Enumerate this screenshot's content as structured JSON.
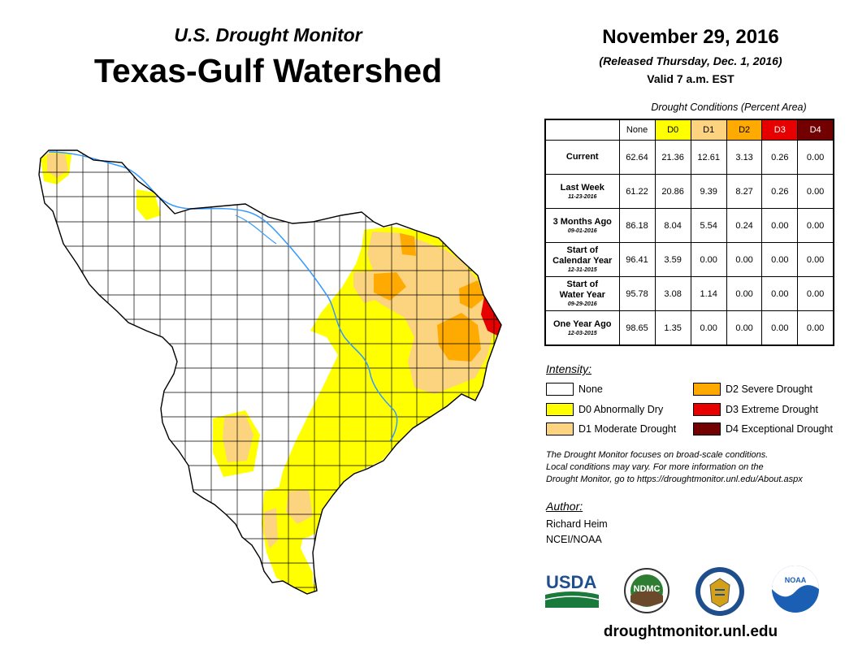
{
  "header": {
    "subtitle": "U.S. Drought Monitor",
    "title": "Texas-Gulf Watershed",
    "date": "November 29, 2016",
    "released": "(Released Thursday, Dec. 1, 2016)",
    "valid": "Valid 7 a.m. EST"
  },
  "table": {
    "caption": "Drought Conditions (Percent Area)",
    "columns": [
      "None",
      "D0",
      "D1",
      "D2",
      "D3",
      "D4"
    ],
    "rows": [
      {
        "label": "Current",
        "label2": "",
        "date": "",
        "values": [
          "62.64",
          "21.36",
          "12.61",
          "3.13",
          "0.26",
          "0.00"
        ]
      },
      {
        "label": "Last Week",
        "label2": "",
        "date": "11-23-2016",
        "values": [
          "61.22",
          "20.86",
          "9.39",
          "8.27",
          "0.26",
          "0.00"
        ]
      },
      {
        "label": "3 Months Ago",
        "label2": "",
        "date": "09-01-2016",
        "values": [
          "86.18",
          "8.04",
          "5.54",
          "0.24",
          "0.00",
          "0.00"
        ]
      },
      {
        "label": "Start of",
        "label2": "Calendar Year",
        "date": "12-31-2015",
        "values": [
          "96.41",
          "3.59",
          "0.00",
          "0.00",
          "0.00",
          "0.00"
        ]
      },
      {
        "label": "Start of",
        "label2": "Water Year",
        "date": "09-29-2016",
        "values": [
          "95.78",
          "3.08",
          "1.14",
          "0.00",
          "0.00",
          "0.00"
        ]
      },
      {
        "label": "One Year Ago",
        "label2": "",
        "date": "12-03-2015",
        "values": [
          "98.65",
          "1.35",
          "0.00",
          "0.00",
          "0.00",
          "0.00"
        ]
      }
    ]
  },
  "legend": {
    "title": "Intensity:",
    "items": [
      {
        "label": "None",
        "color": "#ffffff"
      },
      {
        "label": "D0 Abnormally Dry",
        "color": "#ffff00"
      },
      {
        "label": "D1 Moderate Drought",
        "color": "#fcd37f"
      },
      {
        "label": "D2 Severe Drought",
        "color": "#ffaa00"
      },
      {
        "label": "D3 Extreme Drought",
        "color": "#e60000"
      },
      {
        "label": "D4 Exceptional Drought",
        "color": "#730000"
      }
    ]
  },
  "note": {
    "line1": "The Drought Monitor focuses on broad-scale conditions.",
    "line2": "Local conditions may vary. For more information on the",
    "line3": "Drought Monitor, go to https://droughtmonitor.unl.edu/About.aspx"
  },
  "author": {
    "label": "Author:",
    "name": "Richard Heim",
    "org": "NCEI/NOAA"
  },
  "logos": {
    "usda": "USDA",
    "ndmc": "NDMC",
    "noaa": "NOAA"
  },
  "website": "droughtmonitor.unl.edu"
}
